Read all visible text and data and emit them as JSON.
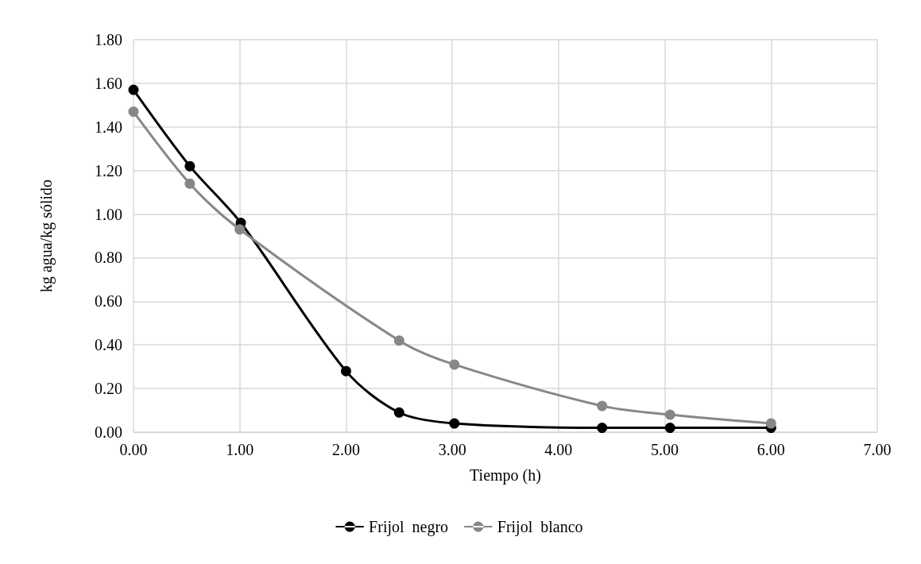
{
  "chart_data": {
    "type": "line",
    "xlabel": "Tiempo (h)",
    "ylabel": "kg agua/kg sólido",
    "x": [
      0,
      0.53,
      1.01,
      2.0,
      2.5,
      3.02,
      4.41,
      5.05,
      6.0
    ],
    "series": [
      {
        "name": "Frijol  negro",
        "color": "#000000",
        "values": [
          1.57,
          1.22,
          0.96,
          0.28,
          0.09,
          0.04,
          0.02,
          0.02,
          0.02
        ]
      },
      {
        "name": "Frijol  blanco",
        "color": "#878787",
        "x": [
          0,
          0.53,
          1.0,
          2.5,
          3.02,
          4.41,
          5.05,
          6.0
        ],
        "values": [
          1.47,
          1.14,
          0.93,
          0.42,
          0.31,
          0.12,
          0.08,
          0.04
        ]
      }
    ],
    "xlim": [
      0,
      7
    ],
    "xticks": [
      {
        "value": 0,
        "label": "0.00"
      },
      {
        "value": 1,
        "label": "1.00"
      },
      {
        "value": 2,
        "label": "2.00"
      },
      {
        "value": 3,
        "label": "3.00"
      },
      {
        "value": 4,
        "label": "4.00"
      },
      {
        "value": 5,
        "label": "5.00"
      },
      {
        "value": 6,
        "label": "6.00"
      },
      {
        "value": 7,
        "label": "7.00"
      }
    ],
    "ylim": [
      0,
      1.8
    ],
    "yticks": [
      {
        "value": 0,
        "label": "0.00"
      },
      {
        "value": 0.2,
        "label": "0.20"
      },
      {
        "value": 0.4,
        "label": "0.40"
      },
      {
        "value": 0.6,
        "label": "0.60"
      },
      {
        "value": 0.8,
        "label": "0.80"
      },
      {
        "value": 1,
        "label": "1.00"
      },
      {
        "value": 1.2,
        "label": "1.20"
      },
      {
        "value": 1.4,
        "label": "1.40"
      },
      {
        "value": 1.6,
        "label": "1.60"
      },
      {
        "value": 1.8,
        "label": "1.80"
      }
    ],
    "grid": true,
    "legend": "bottom",
    "marker": "circle",
    "line_style": "solid"
  }
}
